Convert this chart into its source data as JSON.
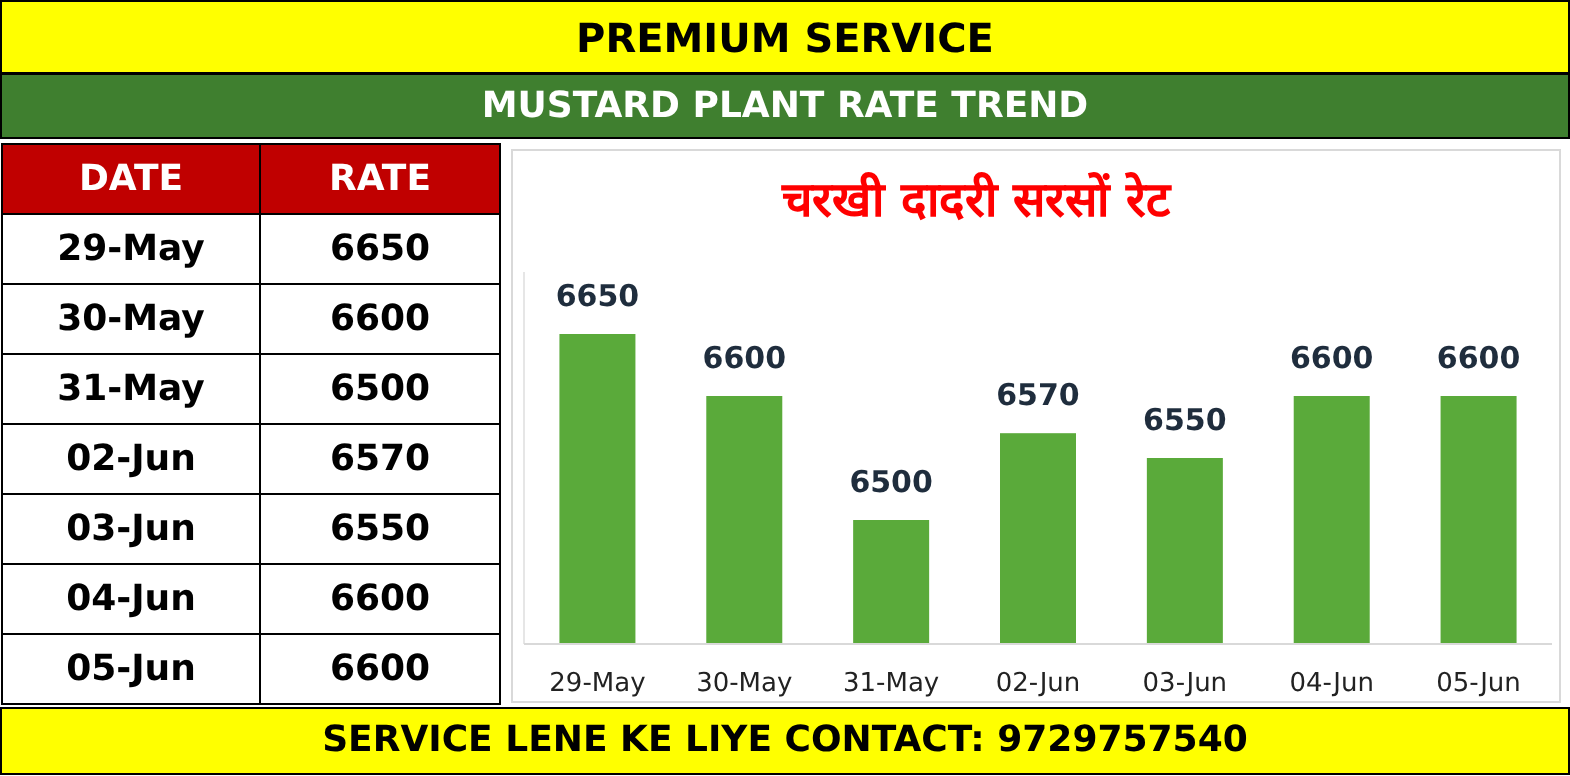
{
  "chart_data": [
    {
      "type": "other",
      "annotations": [
        "DATE",
        "RATE",
        "29-May",
        "6650",
        "30-May",
        "6600",
        "31-May",
        "6500",
        "02-Jun",
        "6570",
        "03-Jun",
        "6550",
        "04-Jun",
        "6600",
        "05-Jun",
        "6600"
      ]
    },
    {
      "type": "bar",
      "title": "चरखी दादरी सरसों रेट",
      "subtitle": "MUSTARD PLANT RATE TREND",
      "annotations": [
        "PREMIUM SERVICE",
        "SERVICE LENE KE LIYE CONTACT: 9729757540"
      ],
      "categories": [
        "29-May",
        "30-May",
        "31-May",
        "02-Jun",
        "03-Jun",
        "04-Jun",
        "05-Jun"
      ],
      "values": [
        6650,
        6600,
        6500,
        6570,
        6550,
        6600,
        6600
      ],
      "color": "#5aaa3a",
      "ylim": [
        6400,
        6700
      ],
      "data_labels": true
    }
  ]
}
